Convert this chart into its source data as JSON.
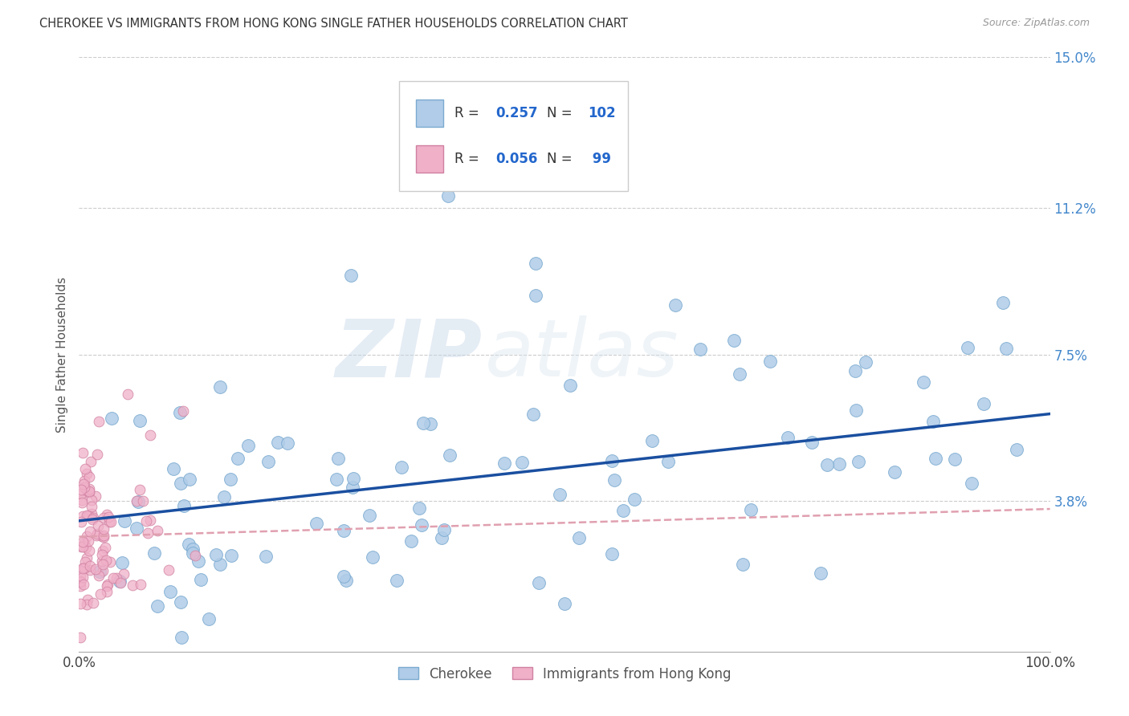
{
  "title": "CHEROKEE VS IMMIGRANTS FROM HONG KONG SINGLE FATHER HOUSEHOLDS CORRELATION CHART",
  "source": "Source: ZipAtlas.com",
  "ylabel": "Single Father Households",
  "xlim": [
    0,
    100
  ],
  "ylim": [
    0,
    15
  ],
  "ytick_vals": [
    0,
    3.8,
    7.5,
    11.2,
    15.0
  ],
  "ytick_labels": [
    "",
    "3.8%",
    "7.5%",
    "11.2%",
    "15.0%"
  ],
  "xtick_vals": [
    0,
    100
  ],
  "xtick_labels": [
    "0.0%",
    "100.0%"
  ],
  "watermark_zip": "ZIP",
  "watermark_atlas": "atlas",
  "background_color": "#ffffff",
  "grid_color": "#cccccc",
  "blue_line_color": "#1a4fa0",
  "pink_line_color": "#e0a0b0",
  "blue_scatter_color": "#b0cce8",
  "pink_scatter_color": "#f0b0c8",
  "blue_scatter_edge": "#7aaad0",
  "pink_scatter_edge": "#d080a0",
  "legend_R1": "0.257",
  "legend_N1": "102",
  "legend_R2": "0.056",
  "legend_N2": " 99",
  "legend_color_val": "#2266cc",
  "legend_label1": "Cherokee",
  "legend_label2": "Immigrants from Hong Kong",
  "blue_line_start_y": 3.3,
  "blue_line_end_y": 6.0,
  "pink_line_start_y": 2.9,
  "pink_line_end_y": 3.6
}
